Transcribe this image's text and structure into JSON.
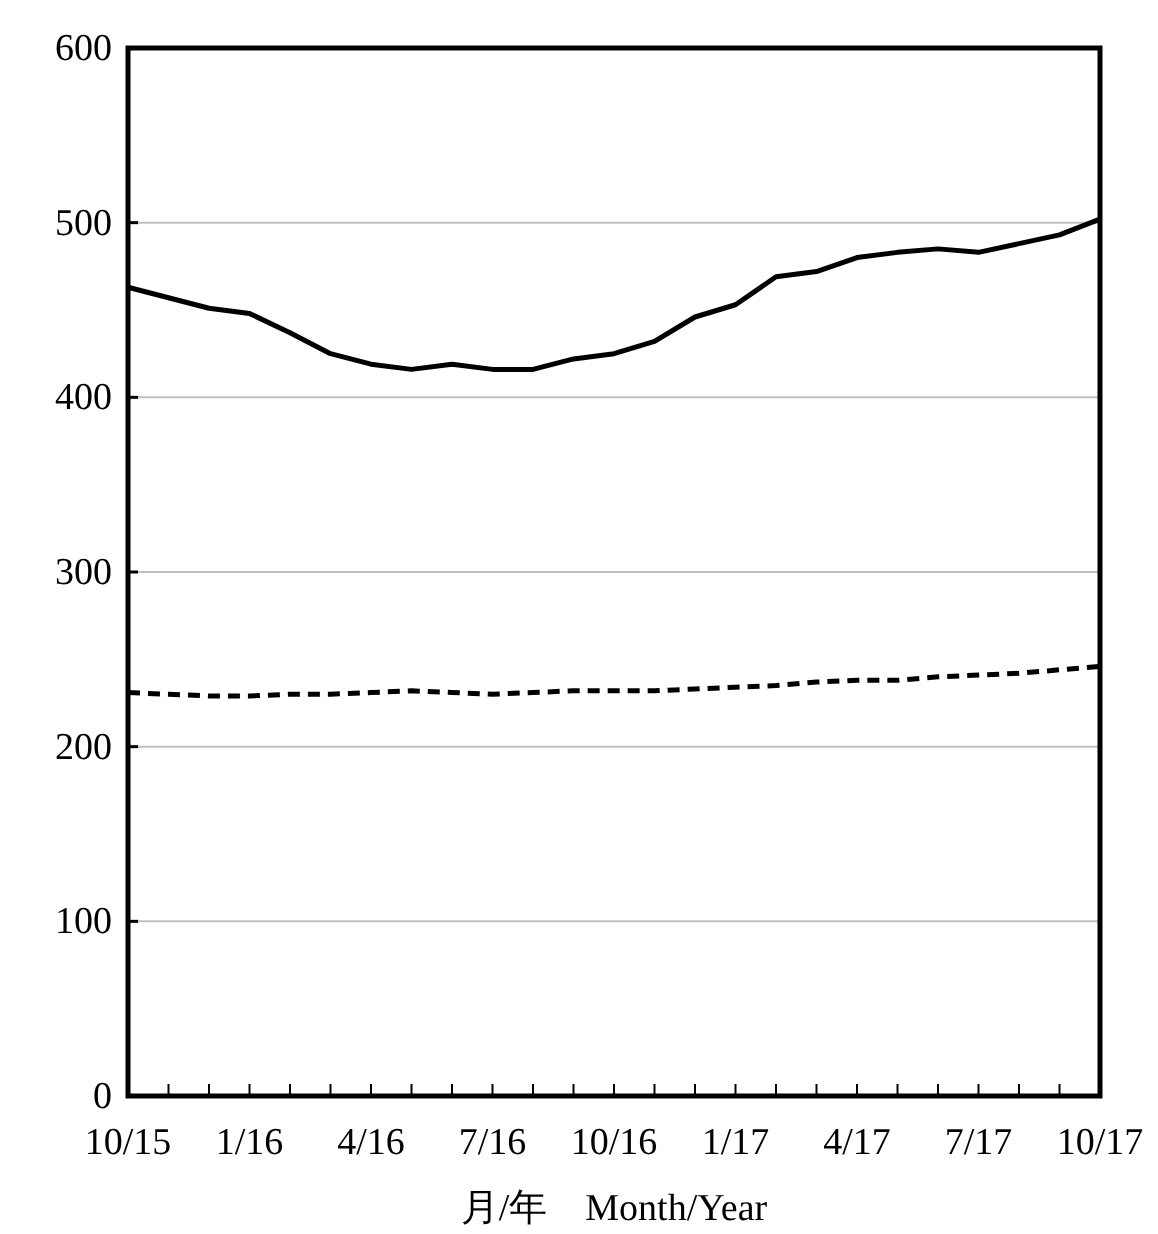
{
  "chart_data": {
    "type": "line",
    "xlabel": "月/年　Month/Year",
    "categories": [
      "10/15",
      null,
      null,
      "1/16",
      null,
      null,
      "4/16",
      null,
      null,
      "7/16",
      null,
      null,
      "10/16",
      null,
      null,
      "1/17",
      null,
      null,
      "4/17",
      null,
      null,
      "7/17",
      null,
      null,
      "10/17"
    ],
    "series": [
      {
        "color": "#000000",
        "line_style": "solid",
        "values": [
          463,
          457,
          451,
          448,
          437,
          425,
          419,
          416,
          419,
          416,
          416,
          422,
          425,
          432,
          446,
          453,
          469,
          472,
          480,
          483,
          485,
          483,
          488,
          493,
          502
        ]
      },
      {
        "color": "#000000",
        "line_style": "dashed",
        "values": [
          231,
          230,
          229,
          229,
          230,
          230,
          231,
          232,
          231,
          230,
          231,
          232,
          232,
          232,
          233,
          234,
          235,
          237,
          238,
          238,
          240,
          241,
          242,
          244,
          246
        ]
      }
    ],
    "ylim": [
      0,
      600
    ],
    "yticks": [
      0,
      100,
      200,
      300,
      400,
      500,
      600
    ],
    "grid": "y",
    "marker": "none"
  }
}
